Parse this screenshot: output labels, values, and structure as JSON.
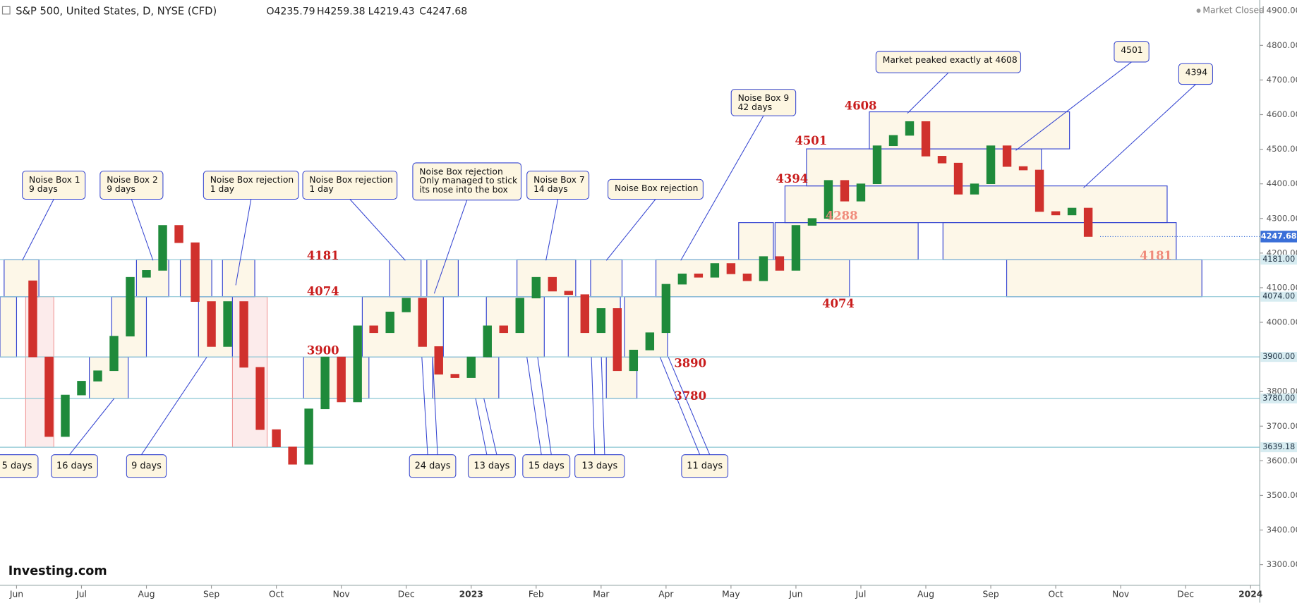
{
  "header": {
    "symbol": "S&P 500, United States, D, NYSE (CFD)",
    "ohlc": [
      "O4235.79",
      "H4259.38",
      "L4219.43",
      "C4247.68"
    ],
    "status": "Market Closed",
    "logo": "Investing.com"
  },
  "chart_data": {
    "type": "candlestick",
    "categories": [
      "Jun",
      null,
      null,
      null,
      "Jul",
      null,
      null,
      null,
      "Aug",
      null,
      null,
      null,
      "Sep",
      null,
      null,
      null,
      "Oct",
      null,
      null,
      null,
      "Nov",
      null,
      null,
      null,
      "Dec",
      null,
      null,
      null,
      "2023",
      null,
      null,
      null,
      "Feb",
      null,
      null,
      null,
      "Mar",
      null,
      null,
      null,
      "Apr",
      null,
      null,
      null,
      "May",
      null,
      null,
      null,
      "Jun",
      null,
      null,
      null,
      "Jul",
      null,
      null,
      null,
      "Aug",
      null,
      null,
      null,
      "Sep",
      null,
      null,
      null,
      "Oct",
      null,
      null,
      null,
      "Nov",
      null,
      null,
      null,
      "Dec",
      null,
      null,
      null,
      "2024"
    ],
    "values": [
      4120,
      3900,
      3670,
      3790,
      3830,
      3860,
      3960,
      4130,
      4150,
      4280,
      4230,
      4060,
      3930,
      4060,
      3870,
      3690,
      3640,
      3590,
      3750,
      3900,
      3770,
      3990,
      3970,
      4030,
      4070,
      3930,
      3850,
      3840,
      3900,
      3990,
      3970,
      4070,
      4130,
      4090,
      4080,
      3970,
      4040,
      3860,
      3920,
      3970,
      4110,
      4140,
      4130,
      4170,
      4140,
      4120,
      4190,
      4150,
      4280,
      4300,
      4410,
      4350,
      4400,
      4510,
      4540,
      4580,
      4480,
      4460,
      4370,
      4400,
      4510,
      4450,
      4440,
      4320,
      4310,
      4330,
      4247.68,
      null,
      null,
      null,
      null,
      null,
      null,
      null,
      null,
      null,
      null
    ],
    "up_color": "#1f8a3b",
    "down_color": "#d0312d",
    "ylim": [
      3240,
      4920
    ],
    "yticks": [
      {
        "value": 3300,
        "label": "3300.00"
      },
      {
        "value": 3400,
        "label": "3400.00"
      },
      {
        "value": 3500,
        "label": "3500.00"
      },
      {
        "value": 3600,
        "label": "3600.00"
      },
      {
        "value": 3700,
        "label": "3700.00"
      },
      {
        "value": 3800,
        "label": "3800.00"
      },
      {
        "value": 4000,
        "label": "4000.00"
      },
      {
        "value": 4100,
        "label": "4100.00"
      },
      {
        "value": 4200,
        "label": "4200.00"
      },
      {
        "value": 4300,
        "label": "4300.00"
      },
      {
        "value": 4400,
        "label": "4400.00"
      },
      {
        "value": 4500,
        "label": "4500.00"
      },
      {
        "value": 4600,
        "label": "4600.00"
      },
      {
        "value": 4700,
        "label": "4700.00"
      },
      {
        "value": 4800,
        "label": "4800.00"
      },
      {
        "value": 4900,
        "label": "4900.00"
      }
    ],
    "levels": [
      {
        "value": 4181,
        "label": "4181.00"
      },
      {
        "value": 4074,
        "label": "4074.00"
      },
      {
        "value": 3900,
        "label": "3900.00"
      },
      {
        "value": 3780,
        "label": "3780.00"
      },
      {
        "value": 3639.18,
        "label": "3639.18"
      }
    ],
    "last_price": {
      "value": 4247.68,
      "label": "4247.68"
    },
    "level_color": "#8cc6d4",
    "boxes": [
      {
        "low": 4074,
        "high": 4181
      },
      {
        "low": 3900,
        "high": 4074
      },
      {
        "low": 3780,
        "high": 3900
      },
      {
        "low": 3900,
        "high": 4074
      },
      {
        "low": 4074,
        "high": 4181
      },
      {
        "low": 4074,
        "high": 4181
      },
      {
        "low": 4074,
        "high": 4181
      },
      {
        "low": 3900,
        "high": 4074
      },
      {
        "low": 3780,
        "high": 3900
      },
      {
        "low": 3900,
        "high": 4074
      },
      {
        "low": 4074,
        "high": 4181
      },
      {
        "low": 4074,
        "high": 4181
      },
      {
        "low": 3780,
        "high": 3900
      },
      {
        "low": 3900,
        "high": 4074
      },
      {
        "low": 4074,
        "high": 4181
      },
      {
        "low": 3900,
        "high": 4074
      },
      {
        "low": 4074,
        "high": 4181
      },
      {
        "low": 3780,
        "high": 3900
      },
      {
        "low": 3900,
        "high": 4074
      },
      {
        "low": 4074,
        "high": 4181
      },
      {
        "low": 4181,
        "high": 4288
      },
      {
        "low": 4181,
        "high": 4288
      },
      {
        "low": 4288,
        "high": 4394
      },
      {
        "low": 4394,
        "high": 4501
      },
      {
        "low": 4501,
        "high": 4608
      },
      {
        "low": 4181,
        "high": 4288
      },
      {
        "low": 4074,
        "high": 4181
      }
    ],
    "shaded": [
      {
        "low": 3639.18,
        "high": 4074
      },
      {
        "low": 3639.18,
        "high": 4074
      }
    ],
    "level_labels": [
      4181,
      4074,
      3900,
      3890,
      3780,
      4608,
      4501,
      4394,
      4288,
      4074,
      4181
    ],
    "callouts": [
      {
        "lines": [
          "Noise Box 1",
          "9 days"
        ]
      },
      {
        "lines": [
          "Noise Box 2",
          "9 days"
        ]
      },
      {
        "lines": [
          "Noise Box rejection",
          "1 day"
        ]
      },
      {
        "lines": [
          "Noise Box rejection",
          "1 day"
        ]
      },
      {
        "lines": [
          "Noise Box rejection",
          "Only managed to stick",
          "its nose into the box"
        ]
      },
      {
        "lines": [
          "Noise Box 7",
          "14 days"
        ]
      },
      {
        "lines": [
          "Noise Box rejection"
        ]
      },
      {
        "lines": [
          "Noise Box 9",
          "42 days"
        ]
      },
      {
        "lines": [
          "Market peaked exactly at 4608"
        ]
      },
      {
        "lines": [
          "4501"
        ]
      },
      {
        "lines": [
          "4394"
        ]
      }
    ],
    "durations": [
      "5 days",
      "16 days",
      "9 days",
      "24 days",
      "13 days",
      "15 days",
      "13 days",
      "11 days"
    ]
  }
}
